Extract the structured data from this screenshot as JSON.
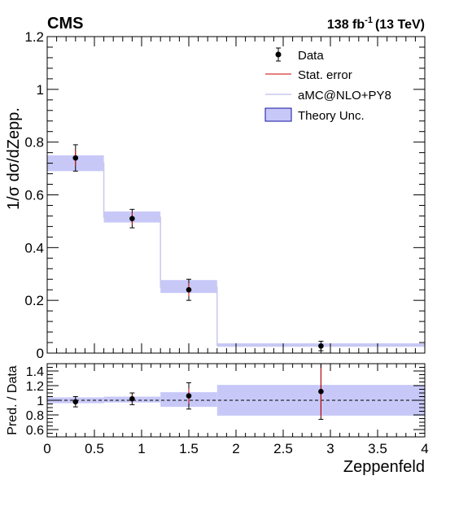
{
  "header": {
    "experiment": "CMS",
    "lumi_value": "138 fb",
    "lumi_exp": "-1",
    "lumi_energy": "(13 TeV)"
  },
  "chart_data": [
    {
      "type": "line",
      "panel": "main",
      "xlabel": "Zeppenfeld",
      "ylabel": "1/σ dσ/dZepp.",
      "xlim": [
        0,
        4
      ],
      "ylim": [
        0,
        1.2
      ],
      "xticks": [
        "0",
        "0.5",
        "1",
        "1.5",
        "2",
        "2.5",
        "3",
        "3.5",
        "4"
      ],
      "yticks": [
        "0",
        "0.2",
        "0.4",
        "0.6",
        "0.8",
        "1",
        "1.2"
      ],
      "bin_edges": [
        0,
        0.6,
        1.2,
        1.8,
        4.0
      ],
      "series": [
        {
          "name": "Data",
          "style": "points",
          "x": [
            0.3,
            0.9,
            1.5,
            2.9
          ],
          "y": [
            0.74,
            0.51,
            0.24,
            0.027
          ],
          "stat_err": [
            0.03,
            0.025,
            0.025,
            0.01
          ],
          "total_err": [
            0.05,
            0.035,
            0.04,
            0.018
          ]
        },
        {
          "name": "aMC@NLO+PY8",
          "style": "step",
          "values": [
            0.72,
            0.515,
            0.25,
            0.03
          ],
          "unc_low": [
            0.69,
            0.495,
            0.228,
            0.024
          ],
          "unc_high": [
            0.75,
            0.537,
            0.277,
            0.037
          ]
        }
      ],
      "legend": {
        "position": "top-right",
        "entries": [
          "Data",
          "Stat. error",
          "aMC@NLO+PY8",
          "Theory Unc."
        ]
      },
      "colors": {
        "data": "#000000",
        "stat_error": "#cc0000",
        "theory_line": "#c8c8f0",
        "theory_band": "#c8c8f8",
        "theory_band_border": "#1010a0"
      }
    },
    {
      "type": "line",
      "panel": "ratio",
      "ylabel": "Pred. / Data",
      "xlim": [
        0,
        4
      ],
      "ylim": [
        0.5,
        1.5
      ],
      "yticks": [
        "0.6",
        "0.8",
        "1",
        "1.2",
        "1.4"
      ],
      "reference_line": 1.0,
      "bin_edges": [
        0,
        0.6,
        1.2,
        1.8,
        4.0
      ],
      "series": [
        {
          "name": "Data",
          "style": "points",
          "x": [
            0.3,
            0.9,
            1.5,
            2.9
          ],
          "y": [
            0.98,
            1.02,
            1.06,
            1.12
          ],
          "stat_err": [
            0.04,
            0.05,
            0.1,
            0.35
          ],
          "total_err": [
            0.07,
            0.08,
            0.18,
            0.38
          ]
        },
        {
          "name": "Theory Unc.",
          "style": "band",
          "unc_low": [
            0.96,
            0.97,
            0.91,
            0.79
          ],
          "unc_high": [
            1.04,
            1.05,
            1.11,
            1.21
          ]
        }
      ]
    }
  ]
}
